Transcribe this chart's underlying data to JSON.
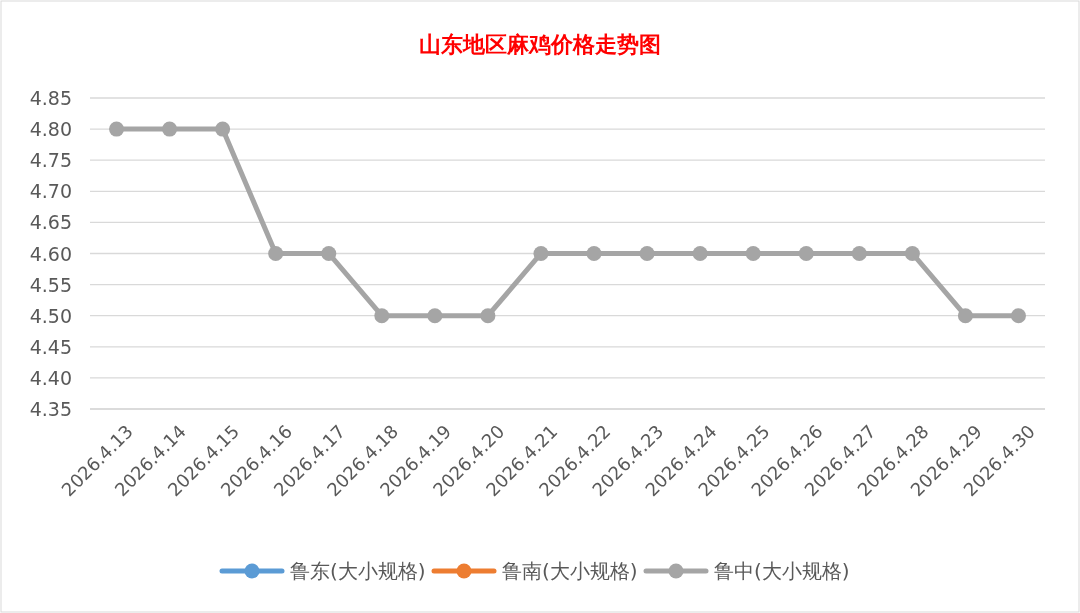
{
  "chart_data": {
    "type": "line",
    "title": "山东地区麻鸡价格走势图",
    "categories": [
      "2026.4.13",
      "2026.4.14",
      "2026.4.15",
      "2026.4.16",
      "2026.4.17",
      "2026.4.18",
      "2026.4.19",
      "2026.4.20",
      "2026.4.21",
      "2026.4.22",
      "2026.4.23",
      "2026.4.24",
      "2026.4.25",
      "2026.4.26",
      "2026.4.27",
      "2026.4.28",
      "2026.4.29",
      "2026.4.30"
    ],
    "series": [
      {
        "name": "鲁东(大小规格)",
        "color": "#5b9bd5",
        "values": [
          null,
          null,
          null,
          null,
          null,
          null,
          null,
          null,
          null,
          null,
          null,
          null,
          null,
          null,
          null,
          null,
          null,
          null
        ]
      },
      {
        "name": "鲁南(大小规格)",
        "color": "#ed7d31",
        "values": [
          null,
          null,
          null,
          null,
          null,
          null,
          null,
          null,
          null,
          null,
          null,
          null,
          null,
          null,
          null,
          null,
          null,
          null
        ]
      },
      {
        "name": "鲁中(大小规格)",
        "color": "#a5a5a5",
        "values": [
          4.8,
          4.8,
          4.8,
          4.6,
          4.6,
          4.5,
          4.5,
          4.5,
          4.6,
          4.6,
          4.6,
          4.6,
          4.6,
          4.6,
          4.6,
          4.6,
          4.5,
          4.5
        ]
      }
    ],
    "ylim": [
      4.35,
      4.85
    ],
    "yticks": [
      4.35,
      {
        "value": 4.4,
        "label": "4.40"
      },
      4.45,
      {
        "value": 4.5,
        "label": "4.50"
      },
      4.55,
      {
        "value": 4.6,
        "label": "4.60"
      },
      4.65,
      {
        "value": 4.7,
        "label": "4.70"
      },
      4.75,
      {
        "value": 4.8,
        "label": "4.80"
      },
      4.85
    ],
    "grid": "y",
    "legend": "bottom",
    "marker": "circle",
    "line_style": "solid"
  }
}
